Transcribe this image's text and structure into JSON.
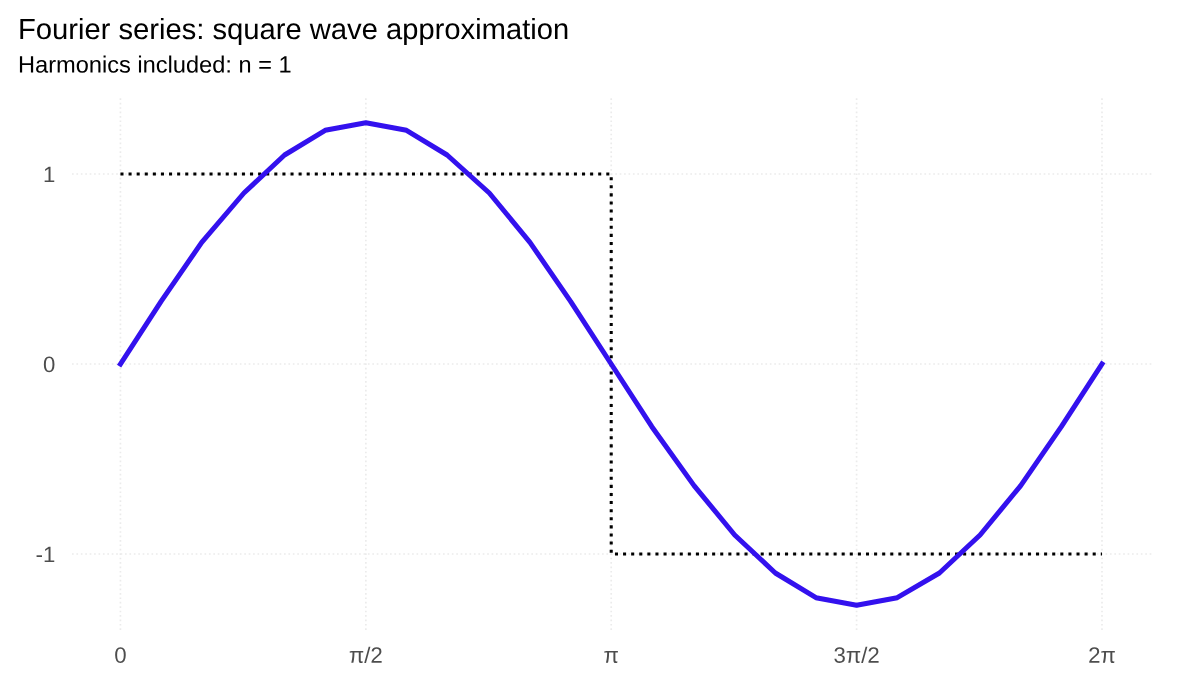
{
  "chart_data": {
    "type": "line",
    "title": "Fourier series: square wave approximation",
    "subtitle": "Harmonics included: n = 1",
    "series": [
      {
        "color": "#000000",
        "line_style": "dotted",
        "x": [
          0,
          3.14,
          3.14,
          6.28
        ],
        "values": [
          1,
          1,
          -1,
          -1
        ]
      },
      {
        "color": "#3311ee",
        "line_style": "solid",
        "x": [
          0,
          0.26,
          0.52,
          0.79,
          1.05,
          1.31,
          1.57,
          1.83,
          2.09,
          2.36,
          2.62,
          2.88,
          3.14,
          3.4,
          3.67,
          3.93,
          4.19,
          4.45,
          4.71,
          4.97,
          5.24,
          5.5,
          5.76,
          6.02,
          6.28
        ],
        "values": [
          0,
          0.33,
          0.64,
          0.9,
          1.1,
          1.23,
          1.27,
          1.23,
          1.1,
          0.9,
          0.64,
          0.33,
          0,
          -0.33,
          -0.64,
          -0.9,
          -1.1,
          -1.23,
          -1.27,
          -1.23,
          -1.1,
          -0.9,
          -0.64,
          -0.33,
          0
        ]
      }
    ],
    "xlim": [
      -0.31,
      6.6
    ],
    "ylim": [
      -1.4,
      1.4
    ],
    "xticks": [
      0,
      {
        "value": 1.57,
        "label": "π/2"
      },
      {
        "value": 3.14,
        "label": "π"
      },
      {
        "value": 4.71,
        "label": "3π/2"
      },
      {
        "value": 6.28,
        "label": "2π"
      }
    ],
    "yticks": [
      -1,
      0,
      1
    ],
    "grid": true,
    "marker": "none"
  }
}
